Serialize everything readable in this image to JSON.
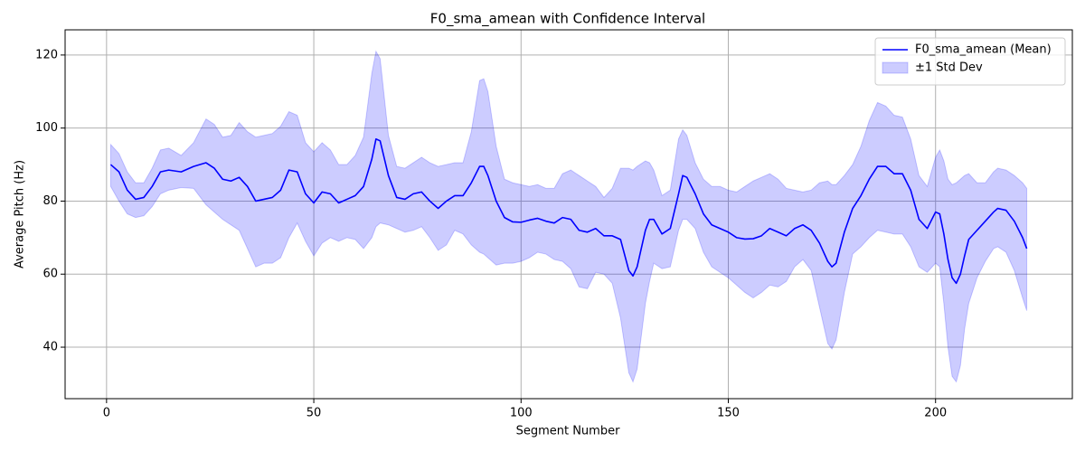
{
  "chart_data": {
    "type": "line",
    "title": "F0_sma_amean with Confidence Interval",
    "x_label": "Segment Number",
    "y_label": "Average Pitch (Hz)",
    "xlim": [
      -10,
      233
    ],
    "ylim": [
      25.9,
      126.9
    ],
    "xticks": [
      0,
      50,
      100,
      150,
      200
    ],
    "yticks": [
      40,
      60,
      80,
      100,
      120
    ],
    "grid": true,
    "legend": "upper right",
    "x": [
      1,
      3,
      5,
      7,
      9,
      11,
      13,
      15,
      18,
      21,
      24,
      26,
      28,
      30,
      32,
      34,
      36,
      38,
      40,
      42,
      44,
      46,
      48,
      50,
      52,
      54,
      56,
      58,
      60,
      62,
      64,
      65,
      66,
      68,
      70,
      72,
      74,
      76,
      78,
      80,
      82,
      84,
      86,
      88,
      90,
      91,
      92,
      94,
      96,
      98,
      100,
      102,
      104,
      106,
      108,
      110,
      112,
      114,
      116,
      118,
      120,
      122,
      124,
      126,
      127,
      128,
      130,
      131,
      132,
      134,
      136,
      138,
      139,
      140,
      142,
      144,
      146,
      148,
      150,
      152,
      154,
      156,
      158,
      160,
      162,
      164,
      166,
      168,
      170,
      172,
      174,
      175,
      176,
      178,
      180,
      182,
      184,
      186,
      188,
      190,
      192,
      194,
      196,
      198,
      200,
      201,
      202,
      203,
      204,
      205,
      206,
      207,
      208,
      210,
      212,
      214,
      215,
      217,
      219,
      221,
      222
    ],
    "series": [
      {
        "name": "F0_sma_amean (Mean)",
        "color": "#0000ff",
        "values": [
          90,
          88,
          83,
          80.5,
          81,
          84,
          88,
          88.5,
          88,
          89.5,
          90.5,
          89,
          86,
          85.5,
          86.5,
          84,
          80,
          80.5,
          81,
          83,
          88.5,
          88,
          82,
          79.5,
          82.5,
          82,
          79.5,
          80.5,
          81.5,
          84,
          91.5,
          97,
          96.5,
          87,
          81,
          80.5,
          82,
          82.5,
          80,
          78,
          80,
          81.5,
          81.5,
          85,
          89.5,
          89.5,
          87,
          80,
          75.5,
          74.3,
          74.2,
          74.8,
          75.3,
          74.5,
          74,
          75.5,
          75,
          72,
          71.5,
          72.5,
          70.5,
          70.5,
          69.5,
          61,
          59.5,
          62,
          72,
          75,
          75,
          71,
          72.5,
          82,
          87,
          86.5,
          82,
          76.5,
          73.5,
          72.5,
          71.5,
          70,
          69.6,
          69.7,
          70.5,
          72.5,
          71.5,
          70.5,
          72.5,
          73.5,
          72,
          68.5,
          63.5,
          62,
          63,
          71.5,
          78,
          81.5,
          86,
          89.5,
          89.5,
          87.5,
          87.5,
          83,
          75,
          72.5,
          77,
          76.5,
          71,
          64,
          59,
          57.5,
          60,
          65,
          69.5,
          72,
          74.5,
          77,
          78,
          77.5,
          74.5,
          70,
          67
        ]
      }
    ],
    "band": {
      "name": "±1 Std Dev",
      "color": "#0000ff",
      "upper": [
        95.5,
        93,
        88,
        85,
        85,
        89,
        94,
        94.5,
        92.5,
        96,
        102.5,
        101,
        97.5,
        98,
        101.5,
        99,
        97.5,
        98,
        98.5,
        100.5,
        104.5,
        103.5,
        96,
        93.5,
        96,
        94,
        90,
        90,
        92.5,
        97.5,
        115,
        121,
        119,
        98,
        89.5,
        89,
        90.5,
        92,
        90.5,
        89.5,
        90,
        90.5,
        90.5,
        99,
        113,
        113.5,
        110,
        95,
        86,
        85,
        84.5,
        84,
        84.5,
        83.5,
        83.5,
        87.5,
        88.5,
        87,
        85.5,
        84,
        81,
        83.5,
        89,
        89,
        88.5,
        89.5,
        91,
        90.5,
        88.5,
        81.5,
        83,
        97,
        99.5,
        98,
        90.5,
        86,
        84,
        84,
        83,
        82.5,
        84,
        85.5,
        86.5,
        87.5,
        86,
        83.5,
        83,
        82.5,
        83,
        85,
        85.5,
        84.5,
        84.5,
        87,
        90,
        95,
        102,
        107,
        106,
        103.5,
        103,
        97,
        87,
        84,
        92,
        94,
        91,
        86,
        84.5,
        85,
        86,
        87,
        87.5,
        85,
        85,
        88,
        89,
        88.5,
        87,
        85,
        83.5
      ],
      "lower": [
        84,
        80,
        76.5,
        75.5,
        76,
        78.5,
        82,
        83,
        83.7,
        83.5,
        79,
        77,
        75,
        73.5,
        72,
        67,
        62,
        63,
        63,
        64.5,
        70,
        74,
        69,
        65,
        68.5,
        70,
        69,
        70,
        69.5,
        67,
        70,
        73,
        74,
        73.5,
        72.5,
        71.5,
        72,
        73,
        70,
        66.5,
        68,
        72,
        71,
        68,
        66,
        65.5,
        64.5,
        62.5,
        63,
        63,
        63.5,
        64.5,
        66,
        65.5,
        64,
        63.5,
        61.5,
        56.5,
        56,
        60.5,
        60,
        57.5,
        48,
        33,
        30.5,
        34,
        52,
        58,
        63,
        61.5,
        62,
        72,
        75,
        75,
        72.5,
        66,
        62,
        60.5,
        59,
        57,
        55,
        53.5,
        55,
        57,
        56.5,
        58,
        62,
        64,
        61,
        51,
        41,
        39.5,
        42,
        55,
        65.5,
        67.5,
        70,
        72,
        71.5,
        71,
        71,
        67.5,
        62,
        60.5,
        63,
        62,
        52,
        40,
        32,
        30.5,
        35,
        45,
        52,
        59,
        63.5,
        67,
        67.5,
        66,
        61,
        53.5,
        50
      ]
    }
  }
}
